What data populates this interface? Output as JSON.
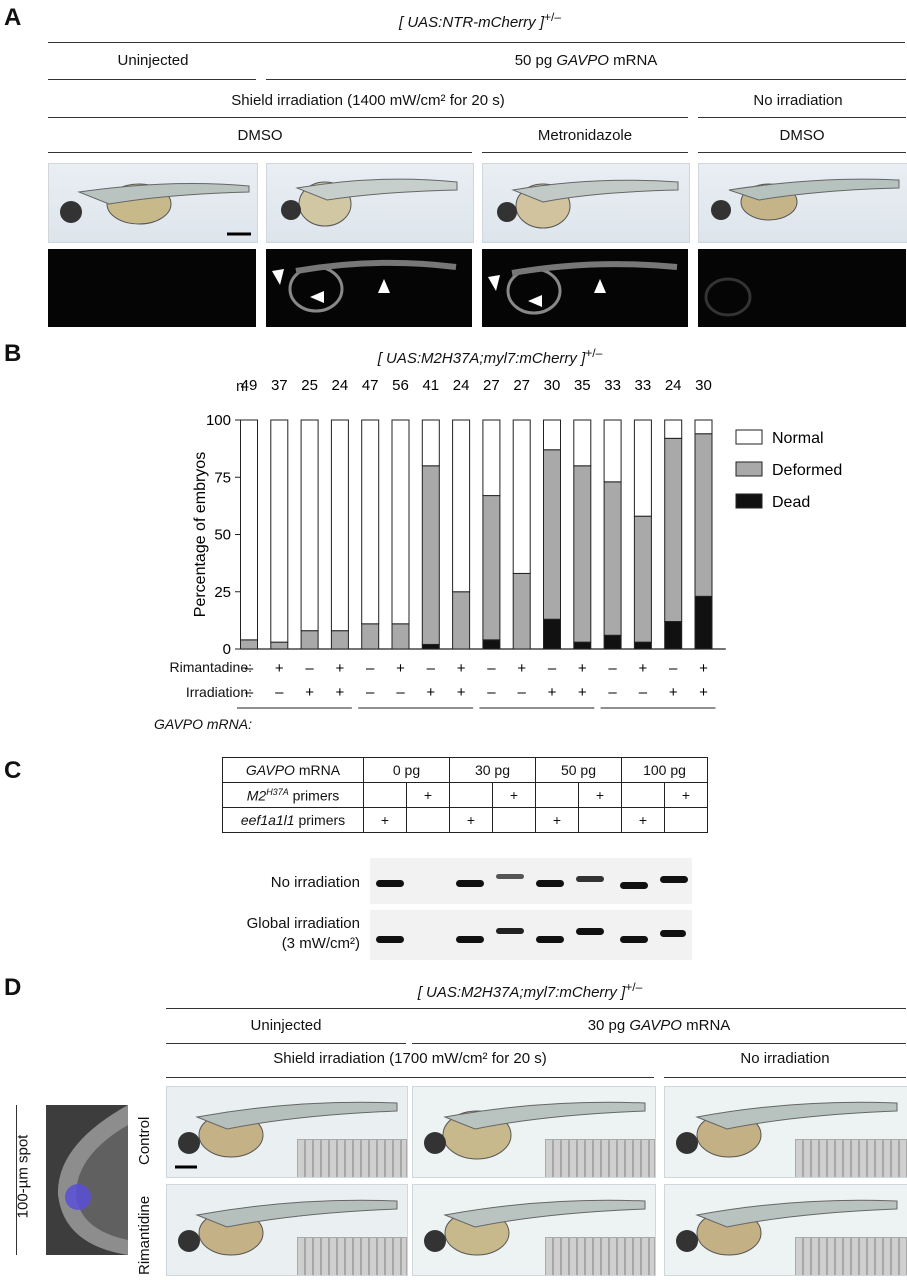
{
  "panelA": {
    "letter": "A",
    "genotype": "UAS:NTR-mCherry",
    "genotype_suffix": "+/–",
    "uninjected": "Uninjected",
    "mrna_pre": "50 pg ",
    "mrna_gene": "GAVPO",
    "mrna_post": " mRNA",
    "shield": "Shield irradiation (1400 mW/cm² for 20 s)",
    "no_irr": "No irradiation",
    "dmso1": "DMSO",
    "metro": "Metronidazole",
    "dmso2": "DMSO"
  },
  "panelB": {
    "letter": "B",
    "genotype": "UAS:M2H37A;myl7:mCherry",
    "genotype_suffix": "+/–",
    "n_label": "n:",
    "row_rim": "Rimantadine:",
    "row_irr": "Irradiation:",
    "row_gav": "GAVPO mRNA:"
  },
  "chart_data": {
    "type": "bar",
    "stacked": true,
    "ylabel": "Percentage of embryos",
    "ylim": [
      0,
      100
    ],
    "yticks": [
      "0",
      "25",
      "50",
      "75",
      "100"
    ],
    "n": [
      49,
      37,
      25,
      24,
      47,
      56,
      41,
      24,
      27,
      27,
      30,
      35,
      33,
      33,
      24,
      30
    ],
    "rimantadine": [
      "–",
      "+",
      "–",
      "+",
      "–",
      "+",
      "–",
      "+",
      "–",
      "+",
      "–",
      "+",
      "–",
      "+",
      "–",
      "+"
    ],
    "irradiation": [
      "–",
      "–",
      "+",
      "+",
      "–",
      "–",
      "+",
      "+",
      "–",
      "–",
      "+",
      "+",
      "–",
      "–",
      "+",
      "+"
    ],
    "groups": [
      "0 pg",
      "30 pg",
      "50 pg",
      "100 pg"
    ],
    "series": [
      {
        "name": "Dead",
        "color": "#111111",
        "values": [
          0,
          0,
          0,
          0,
          0,
          0,
          2,
          0,
          4,
          0,
          13,
          3,
          6,
          3,
          12,
          23
        ]
      },
      {
        "name": "Deformed",
        "color": "#a9a9a9",
        "values": [
          4,
          3,
          8,
          8,
          11,
          11,
          78,
          25,
          63,
          33,
          74,
          77,
          67,
          55,
          80,
          71
        ]
      },
      {
        "name": "Normal",
        "color": "#ffffff",
        "values": [
          96,
          97,
          92,
          92,
          89,
          89,
          20,
          75,
          33,
          67,
          13,
          20,
          27,
          42,
          8,
          6
        ]
      }
    ],
    "legend": [
      "Normal",
      "Deformed",
      "Dead"
    ],
    "legend_position": "right"
  },
  "panelC": {
    "letter": "C",
    "r1_label_gene": "GAVPO",
    "r1_label_rest": " mRNA",
    "r1": [
      "0 pg",
      "30 pg",
      "50 pg",
      "100 pg"
    ],
    "r2_label_gene": "M2",
    "r2_label_sup": "H37A",
    "r2_label_rest": " primers",
    "r3_label_gene": "eef1a1l1",
    "r3_label_rest": " primers",
    "plus": "+",
    "no_irr": "No irradiation",
    "global1": "Global irradiation",
    "global2": "(3 mW/cm²)"
  },
  "panelD": {
    "letter": "D",
    "genotype": "UAS:M2H37A;myl7:mCherry",
    "genotype_suffix": "+/–",
    "uninjected": "Uninjected",
    "mrna_pre": "30 pg ",
    "mrna_gene": "GAVPO",
    "mrna_post": " mRNA",
    "shield": "Shield irradiation (1700 mW/cm² for 20 s)",
    "no_irr": "No irradiation",
    "spot": "100-µm  spot",
    "control": "Control",
    "rim": "Rimantidine"
  }
}
